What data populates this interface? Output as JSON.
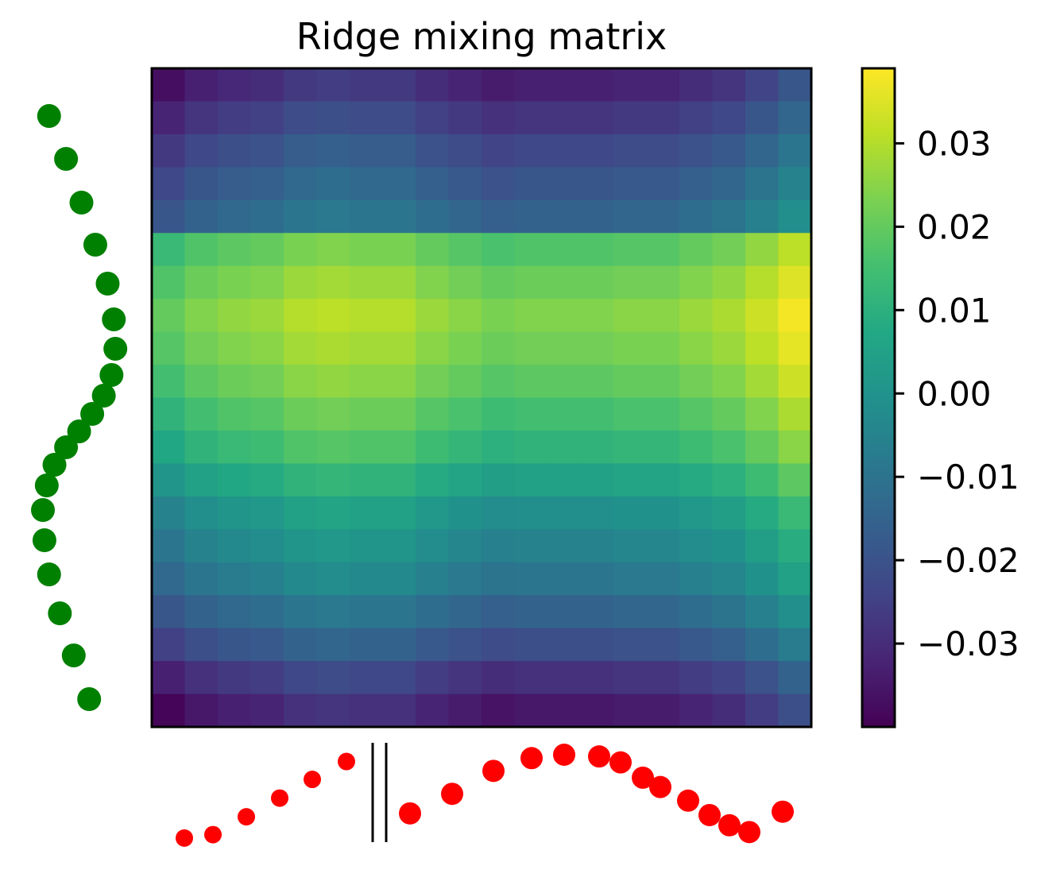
{
  "chart_data": {
    "type": "heatmap",
    "title": "Ridge mixing matrix",
    "colormap": "viridis",
    "grid": false,
    "vlim": [
      -0.04,
      0.039
    ],
    "colorbar": {
      "placement": "right",
      "ticks": [
        -0.03,
        -0.02,
        -0.01,
        0.0,
        0.01,
        0.02,
        0.03
      ],
      "tick_labels": [
        "−0.03",
        "−0.02",
        "−0.01",
        "0.00",
        "0.01",
        "0.02",
        "0.03"
      ]
    },
    "row_profile": [
      -0.028,
      -0.023,
      -0.018,
      -0.014,
      -0.01,
      0.022,
      0.026,
      0.029,
      0.027,
      0.024,
      0.02,
      0.016,
      0.01,
      0.004,
      0.0,
      -0.004,
      -0.01,
      -0.016,
      -0.024,
      -0.03
    ],
    "column_profile": [
      -0.009,
      -0.005,
      -0.003,
      -0.002,
      0.001,
      0.002,
      0.001,
      0.001,
      -0.002,
      -0.004,
      -0.006,
      -0.005,
      -0.005,
      -0.005,
      -0.004,
      -0.004,
      -0.002,
      0.0,
      0.004,
      0.009
    ],
    "row_markers": {
      "color": "#008000",
      "values": [
        0.08,
        0.3,
        0.5,
        0.68,
        0.84,
        0.92,
        0.94,
        0.89,
        0.79,
        0.64,
        0.47,
        0.3,
        0.15,
        0.05,
        0.0,
        0.02,
        0.08,
        0.22,
        0.4,
        0.6
      ]
    },
    "column_markers": {
      "color": "#ff0000",
      "values": [
        0.02,
        0.06,
        0.27,
        0.49,
        0.71,
        0.92,
        0.31,
        0.54,
        0.81,
        0.96,
        1.0,
        0.98,
        0.91,
        0.73,
        0.62,
        0.46,
        0.29,
        0.17,
        0.09,
        0.33
      ]
    }
  }
}
